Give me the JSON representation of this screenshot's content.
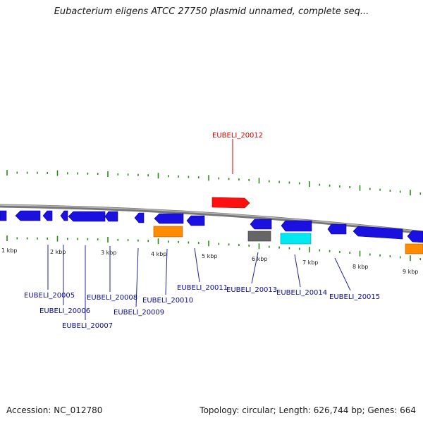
{
  "title": "Eubacterium eligens ATCC 27750 plasmid unnamed, complete seq...",
  "footer": {
    "accession": "Accession: NC_012780",
    "summary": "Topology: circular; Length: 626,744 bp; Genes: 664"
  },
  "colors": {
    "blue": "#1a10e0",
    "red": "#ff0f0f",
    "orange": "#ff8c00",
    "gray": "#666666",
    "cyan": "#00e8f0",
    "label_blue": "#0a0a9a",
    "label_red": "#cc0000",
    "tick_green": "#2a8a1a"
  },
  "kbp_labels": [
    "1 kbp",
    "2 kbp",
    "3 kbp",
    "4 kbp",
    "5 kbp",
    "6 kbp",
    "7 kbp",
    "8 kbp",
    "9 kbp"
  ],
  "gene_labels": [
    "EUBELI_20005",
    "EUBELI_20006",
    "EUBELI_20007",
    "EUBELI_20008",
    "EUBELI_20009",
    "EUBELI_20010",
    "EUBELI_20011",
    "EUBELI_20012",
    "EUBELI_20013",
    "EUBELI_20014",
    "EUBELI_20015"
  ]
}
